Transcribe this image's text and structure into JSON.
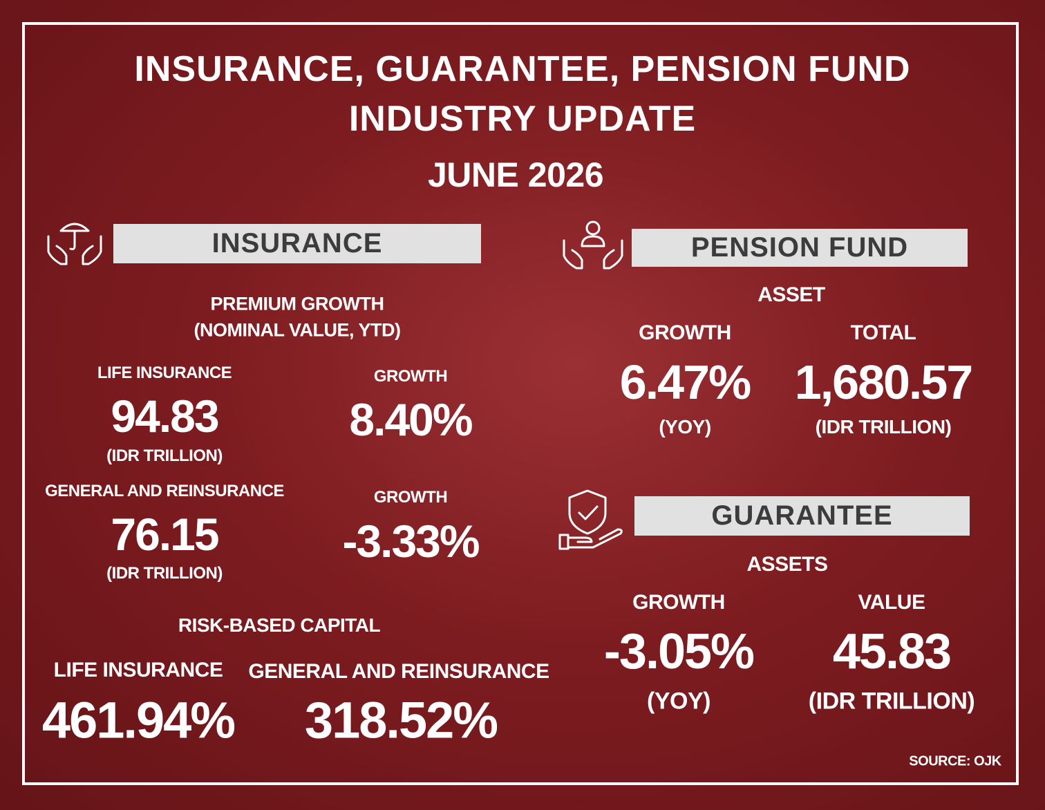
{
  "header": {
    "title": "INSURANCE, GUARANTEE, PENSION FUND INDUSTRY UPDATE",
    "date": "JUNE 2026"
  },
  "insurance": {
    "heading": "INSURANCE",
    "premium_growth": {
      "title": "PREMIUM GROWTH",
      "subtitle": "(NOMINAL VALUE, YTD)",
      "rows": [
        {
          "label": "LIFE INSURANCE",
          "value": "94.83",
          "unit": "(IDR TRILLION)",
          "growth_label": "GROWTH",
          "growth": "8.40%"
        },
        {
          "label": "GENERAL AND REINSURANCE",
          "value": "76.15",
          "unit": "(IDR TRILLION)",
          "growth_label": "GROWTH",
          "growth": "-3.33%"
        }
      ]
    },
    "rbc": {
      "title": "RISK-BASED CAPITAL",
      "items": [
        {
          "label": "LIFE INSURANCE",
          "value": "461.94%"
        },
        {
          "label": "GENERAL AND REINSURANCE",
          "value": "318.52%"
        }
      ]
    }
  },
  "pension_fund": {
    "heading": "PENSION FUND",
    "asset_label": "ASSET",
    "growth": {
      "label": "GROWTH",
      "value": "6.47%",
      "unit": "(YOY)"
    },
    "total": {
      "label": "TOTAL",
      "value": "1,680.57",
      "unit": "(IDR TRILLION)"
    }
  },
  "guarantee": {
    "heading": "GUARANTEE",
    "assets_label": "ASSETS",
    "growth": {
      "label": "GROWTH",
      "value": "-3.05%",
      "unit": "(YOY)"
    },
    "value": {
      "label": "VALUE",
      "value": "45.83",
      "unit": "(IDR TRILLION)"
    }
  },
  "source": "SOURCE: OJK"
}
